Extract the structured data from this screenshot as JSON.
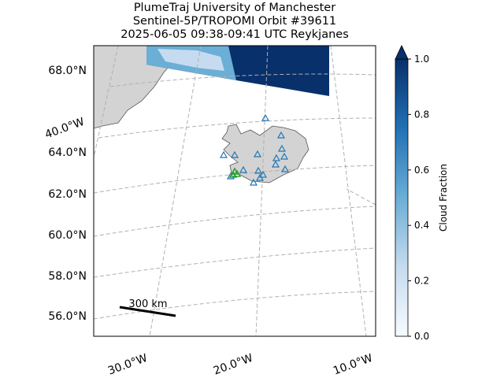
{
  "title": [
    "PlumeTraj    University of Manchester",
    "Sentinel-5P/TROPOMI Orbit #39611",
    "2025-06-05   09:38-09:41 UTC   Reykjanes"
  ],
  "map": {
    "lat_labels": [
      "68.0°N",
      "64.0°N",
      "62.0°N",
      "60.0°N",
      "58.0°N",
      "56.0°N"
    ],
    "lon_labels": [
      "40.0°W",
      "30.0°W",
      "20.0°W",
      "10.0°W"
    ],
    "scale_bar": "300 km"
  },
  "colorbar": {
    "label": "Cloud Fraction",
    "lim": [
      0,
      1
    ],
    "colormap": [
      "#f7fbff",
      "#c6dbef",
      "#6baed6",
      "#2171b5",
      "#08306b"
    ],
    "ticks": [
      {
        "value": 0,
        "label": "0.0"
      },
      {
        "value": 0.2,
        "label": "0.2"
      },
      {
        "value": 0.4,
        "label": "0.4"
      },
      {
        "value": 0.6,
        "label": "0.6"
      },
      {
        "value": 0.8,
        "label": "0.8"
      },
      {
        "value": 1,
        "label": "1.0"
      }
    ]
  }
}
